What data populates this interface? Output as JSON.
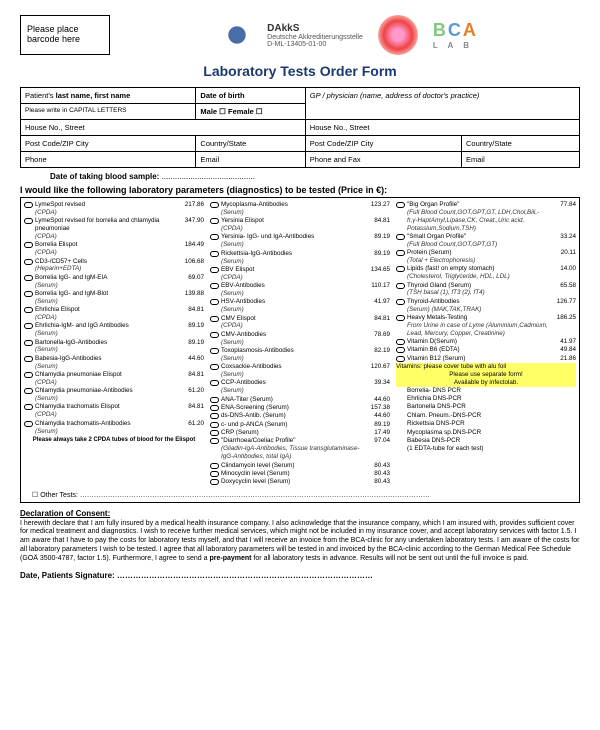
{
  "barcode": "Please place barcode here",
  "logos": {
    "dakks1": "DAkkS",
    "dakks2": "Deutsche Akkreditierungsstelle"
  },
  "bca": {
    "b": "B",
    "c": "C",
    "a": "A",
    "lab": "L A B"
  },
  "title": "Laboratory Tests Order Form",
  "info": {
    "r1c1": "Patient's last name, first name",
    "r1c2": "Date of birth",
    "r1c3": "GP / physician (name, address of doctor's practice)",
    "r2": "Please write in CAPITAL LETTERS",
    "r2m": "Male ☐    Female ☐",
    "r3c1": "House No., Street",
    "r3c2": "House No., Street",
    "r4c1": "Post Code/ZIP    City",
    "r4c2": "Country/State",
    "r4c3": "Post Code/ZIP    City",
    "r4c4": "Country/State",
    "r5c1": "Phone",
    "r5c2": "Email",
    "r5c3": "Phone and Fax",
    "r5c4": "Email"
  },
  "date_sample": "Date of taking blood sample:",
  "dots": "..........................................",
  "param_head": "I would like the following laboratory parameters (diagnostics) to be tested (Price in €):",
  "col1": [
    {
      "n": "LymeSpot revised",
      "s": "(CPDA)",
      "p": "217.86"
    },
    {
      "n": "LymeSpot revised for borrelia and chlamydia pneumoniae",
      "s": "(CPDA)",
      "p": "347.90"
    },
    {
      "n": "Borrelia Elispot",
      "s": "(CPDA)",
      "p": "184.49"
    },
    {
      "n": "CD3-/CD57+ Cells",
      "s": "(Heparin+EDTA)",
      "p": "106.68"
    },
    {
      "n": "Borrelia IgG- and IgM-EIA",
      "s": "(Serum)",
      "p": "69.07"
    },
    {
      "n": "Borrelia IgG- and IgM-Blot",
      "s": "(Serum)",
      "p": "139.88"
    },
    {
      "n": "Ehrlichia Elispot",
      "s": "(CPDA)",
      "p": "84.81"
    },
    {
      "n": "Ehrlichia-IgM- and IgG Antibodies",
      "s": "(Serum)",
      "p": "89.19"
    },
    {
      "n": "Bartonella-IgG-Antibodies",
      "s": "(Serum)",
      "p": "89.19"
    },
    {
      "n": "Babesia-IgG-Antibodies",
      "s": "(Serum)",
      "p": "44.60"
    },
    {
      "n": "Chlamydia pneumoniae Elispot",
      "s": "(CPDA)",
      "p": "84.81"
    },
    {
      "n": "Chlamydia pneumoniae-Antibodies",
      "s": "(Serum)",
      "p": "61.20"
    },
    {
      "n": "Chlamydia trachomatis Elispot",
      "s": "(CPDA)",
      "p": "84.81"
    },
    {
      "n": "Chlamydia trachomatis-Antibodies",
      "s": "(Serum)",
      "p": "61.20"
    }
  ],
  "col1_note": "Please always take 2 CPDA tubes of blood for the Elispot",
  "col2": [
    {
      "n": "Mycoplasma-Antibodies",
      "s": "(Serum)",
      "p": "123.27"
    },
    {
      "n": "Yersinia Elispot",
      "s": "(CPDA)",
      "p": "84.81"
    },
    {
      "n": "Yersinia- IgG- und IgA-Antibodies",
      "s": "(Serum)",
      "p": "89.19"
    },
    {
      "n": "Rickettsia-IgG-Antibodies",
      "s": "(Serum)",
      "p": "89.19"
    },
    {
      "n": "EBV Elispot",
      "s": "(CPDA)",
      "p": "134.65"
    },
    {
      "n": "EBV-Antibodies",
      "s": "(Serum)",
      "p": "110.17"
    },
    {
      "n": "HSV-Antibodies",
      "s": "(Serum)",
      "p": "41.97"
    },
    {
      "n": "CMV Elispot",
      "s": "(CPDA)",
      "p": "84.81"
    },
    {
      "n": "CMV-Antibodies",
      "s": "(Serum)",
      "p": "78.69"
    },
    {
      "n": "Toxoplasmosis-Antibodies",
      "s": "(Serum)",
      "p": "82.19"
    },
    {
      "n": "Coxsackie-Antibodies",
      "s": "(Serum)",
      "p": "120.67"
    },
    {
      "n": "CCP-Antibodies",
      "s": "(Serum)",
      "p": "39.34"
    },
    {
      "n": "ANA-Titer (Serum)",
      "s": "",
      "p": "44.60"
    },
    {
      "n": "ENA-Screening (Serum)",
      "s": "",
      "p": "157.38"
    },
    {
      "n": "ds-DNS-Antib. (Serum)",
      "s": "",
      "p": "44.60"
    },
    {
      "n": "c- und p-ANCA (Serum)",
      "s": "",
      "p": "89.19"
    },
    {
      "n": "CRP (Serum)",
      "s": "",
      "p": "17.49"
    },
    {
      "n": "\"Diarrhoea/Coeliac Profile\"",
      "s": "(Gliadin-IgA-Antibodies, Tissue transglutaminase-IgG-Antibodies, total IgA)",
      "p": "97.04"
    },
    {
      "n": "Clindamycin level (Serum)",
      "s": "",
      "p": "80.43"
    },
    {
      "n": "Minocyclin level (Serum)",
      "s": "",
      "p": "80.43"
    },
    {
      "n": "Doxycyclin level (Serum)",
      "s": "",
      "p": "80.43"
    }
  ],
  "col3": [
    {
      "n": "\"Big Organ Profile\"",
      "s": "(Full Blood Count,GOT,GPT,GT, LDH,Chol,Bili,- fr,γ-HaptAmyl,Lipase,CK, Creat.,Uric acid, Potassium,Sodium,TSH)",
      "p": "77.84"
    },
    {
      "n": "\"Small Organ Profile\"",
      "s": "(Full Blood Count,GOT,GPT,GT)",
      "p": "33.24"
    },
    {
      "n": "Protein (Serum)",
      "s": "(Total + Electrophoresis)",
      "p": "20.11"
    },
    {
      "n": "Lipids (fast! on empty stomach)",
      "s": "(Cholesterol, Triglyceride, HDL, LDL)",
      "p": "14.00"
    },
    {
      "n": "Thyroid Gland (Serum)",
      "s": "(TSH basal (1), fT3 (2), fT4)",
      "p": "65.58"
    },
    {
      "n": "Thyroid-Antibodies",
      "s": "(Serum) (MAK,TAK,TRAK)",
      "p": "126.77"
    },
    {
      "n": "Heavy Metals-Testing",
      "s": "From Urine in case of Lyme (Aluminium,Cadmium, Lead, Mercury, Copper, Creatinine)",
      "p": "186.25"
    },
    {
      "n": "Vitamin D(Serum)",
      "s": "",
      "p": "41.97"
    },
    {
      "n": "Vitamin B6 (EDTA)",
      "s": "",
      "p": "49.84"
    },
    {
      "n": "Vitamin B12 (Serum)",
      "s": "",
      "p": "21.86"
    }
  ],
  "col3_hl1": "Vitamins: please cover tube with alu foil",
  "col3_hl2": "Please use separate form!",
  "col3_hl3": "Available by infectolab.",
  "col3_pcr": [
    "Borrelia- DNS PCR",
    "Ehrlichia DNS-PCR",
    "Bartonella DNS-PCR",
    "Chlam. Pneum.-DNS-PCR",
    "Rickettsia DNS-PCR",
    "Mycoplasma sp.DNS-PCR",
    "Babesia DNS-PCR",
    "(1 EDTA-tube for each test)"
  ],
  "other": "☐ Other Tests: ……………………………………………………………………………………………………………………………………",
  "decl_head": "Declaration of Consent:",
  "decl": "I herewith declare that I am fully insured by a medical health insurance company. I also acknowledge that the insurance company, which I am insured with, provides sufficient cover for medical treatment and diagnostics. I wish to receive further medical services, which might not be included in my insurance cover, and accept laboratory services with factor 1.5. I am aware that I have to pay the costs for laboratory tests myself, and that I will receive an invoice from the BCA-clinic for any undertaken laboratory tests. I am aware of the costs for all laboratory parameters I wish to be tested. I agree that all laboratory parameters will be tested in and invoiced by the BCA-clinic according to the German Medical Fee Schedule (GOÄ 3500-4787, factor 1.5). Furthermore, I agree to send a pre-payment for all laboratory tests in advance. Results will not be sent out until the full invoice is paid.",
  "sig": "Date, Patients Signature: ……………………………………………………………………………………"
}
